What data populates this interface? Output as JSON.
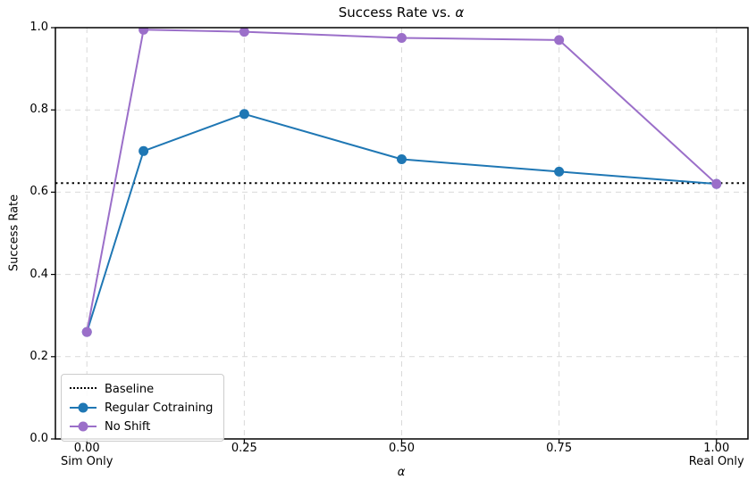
{
  "chart_data": {
    "type": "line",
    "title": "Success Rate vs. α",
    "xlabel": "α",
    "ylabel": "Success Rate",
    "xlim": [
      -0.05,
      1.05
    ],
    "ylim": [
      0.0,
      1.0
    ],
    "grid": true,
    "grid_color": "#d9d9d9",
    "spine_color": "#000000",
    "legend_position": "lower left",
    "legend_border_color": "#cccccc",
    "x_ticks": [
      {
        "value": 0.0,
        "label": "0.00",
        "sublabel": "Sim Only"
      },
      {
        "value": 0.25,
        "label": "0.25",
        "sublabel": ""
      },
      {
        "value": 0.5,
        "label": "0.50",
        "sublabel": ""
      },
      {
        "value": 0.75,
        "label": "0.75",
        "sublabel": ""
      },
      {
        "value": 1.0,
        "label": "1.00",
        "sublabel": "Real Only"
      }
    ],
    "y_ticks": [
      {
        "value": 0.0,
        "label": "0.0"
      },
      {
        "value": 0.2,
        "label": "0.2"
      },
      {
        "value": 0.4,
        "label": "0.4"
      },
      {
        "value": 0.6,
        "label": "0.6"
      },
      {
        "value": 0.8,
        "label": "0.8"
      },
      {
        "value": 1.0,
        "label": "1.0"
      }
    ],
    "baseline": {
      "label": "Baseline",
      "value": 0.622,
      "color": "#000000",
      "linestyle": "dotted"
    },
    "x": [
      0.0,
      0.09,
      0.25,
      0.5,
      0.75,
      1.0
    ],
    "series": [
      {
        "name": "Regular Cotraining",
        "color": "#1f77b4",
        "linestyle": "solid",
        "marker": "circle",
        "values": [
          0.26,
          0.7,
          0.79,
          0.68,
          0.65,
          0.62
        ]
      },
      {
        "name": "No Shift",
        "color": "#9b6fc9",
        "linestyle": "solid",
        "marker": "circle",
        "values": [
          0.26,
          0.995,
          0.99,
          0.975,
          0.97,
          0.62
        ]
      }
    ]
  }
}
